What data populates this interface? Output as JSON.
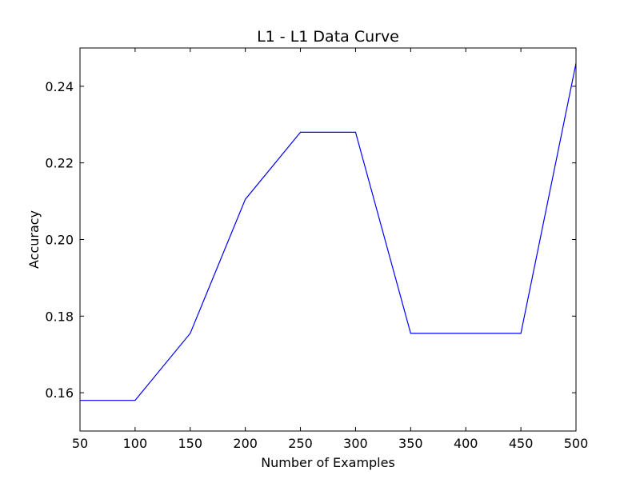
{
  "chart_data": {
    "type": "line",
    "title": "L1 - L1 Data Curve",
    "xlabel": "Number of Examples",
    "ylabel": "Accuracy",
    "xlim": [
      50,
      500
    ],
    "ylim": [
      0.15,
      0.25
    ],
    "xticks": [
      50,
      100,
      150,
      200,
      250,
      300,
      350,
      400,
      450,
      500
    ],
    "xtick_labels": [
      "50",
      "100",
      "150",
      "200",
      "250",
      "300",
      "350",
      "400",
      "450",
      "500"
    ],
    "yticks": [
      0.16,
      0.18,
      0.2,
      0.22,
      0.24
    ],
    "ytick_labels": [
      "0.16",
      "0.18",
      "0.20",
      "0.22",
      "0.24"
    ],
    "grid": false,
    "legend": "none",
    "series": [
      {
        "color": "#0000ff",
        "x": [
          50,
          100,
          150,
          200,
          250,
          300,
          350,
          400,
          450,
          500
        ],
        "y": [
          0.158,
          0.158,
          0.1755,
          0.2105,
          0.228,
          0.228,
          0.1755,
          0.1755,
          0.1755,
          0.246
        ]
      }
    ]
  }
}
